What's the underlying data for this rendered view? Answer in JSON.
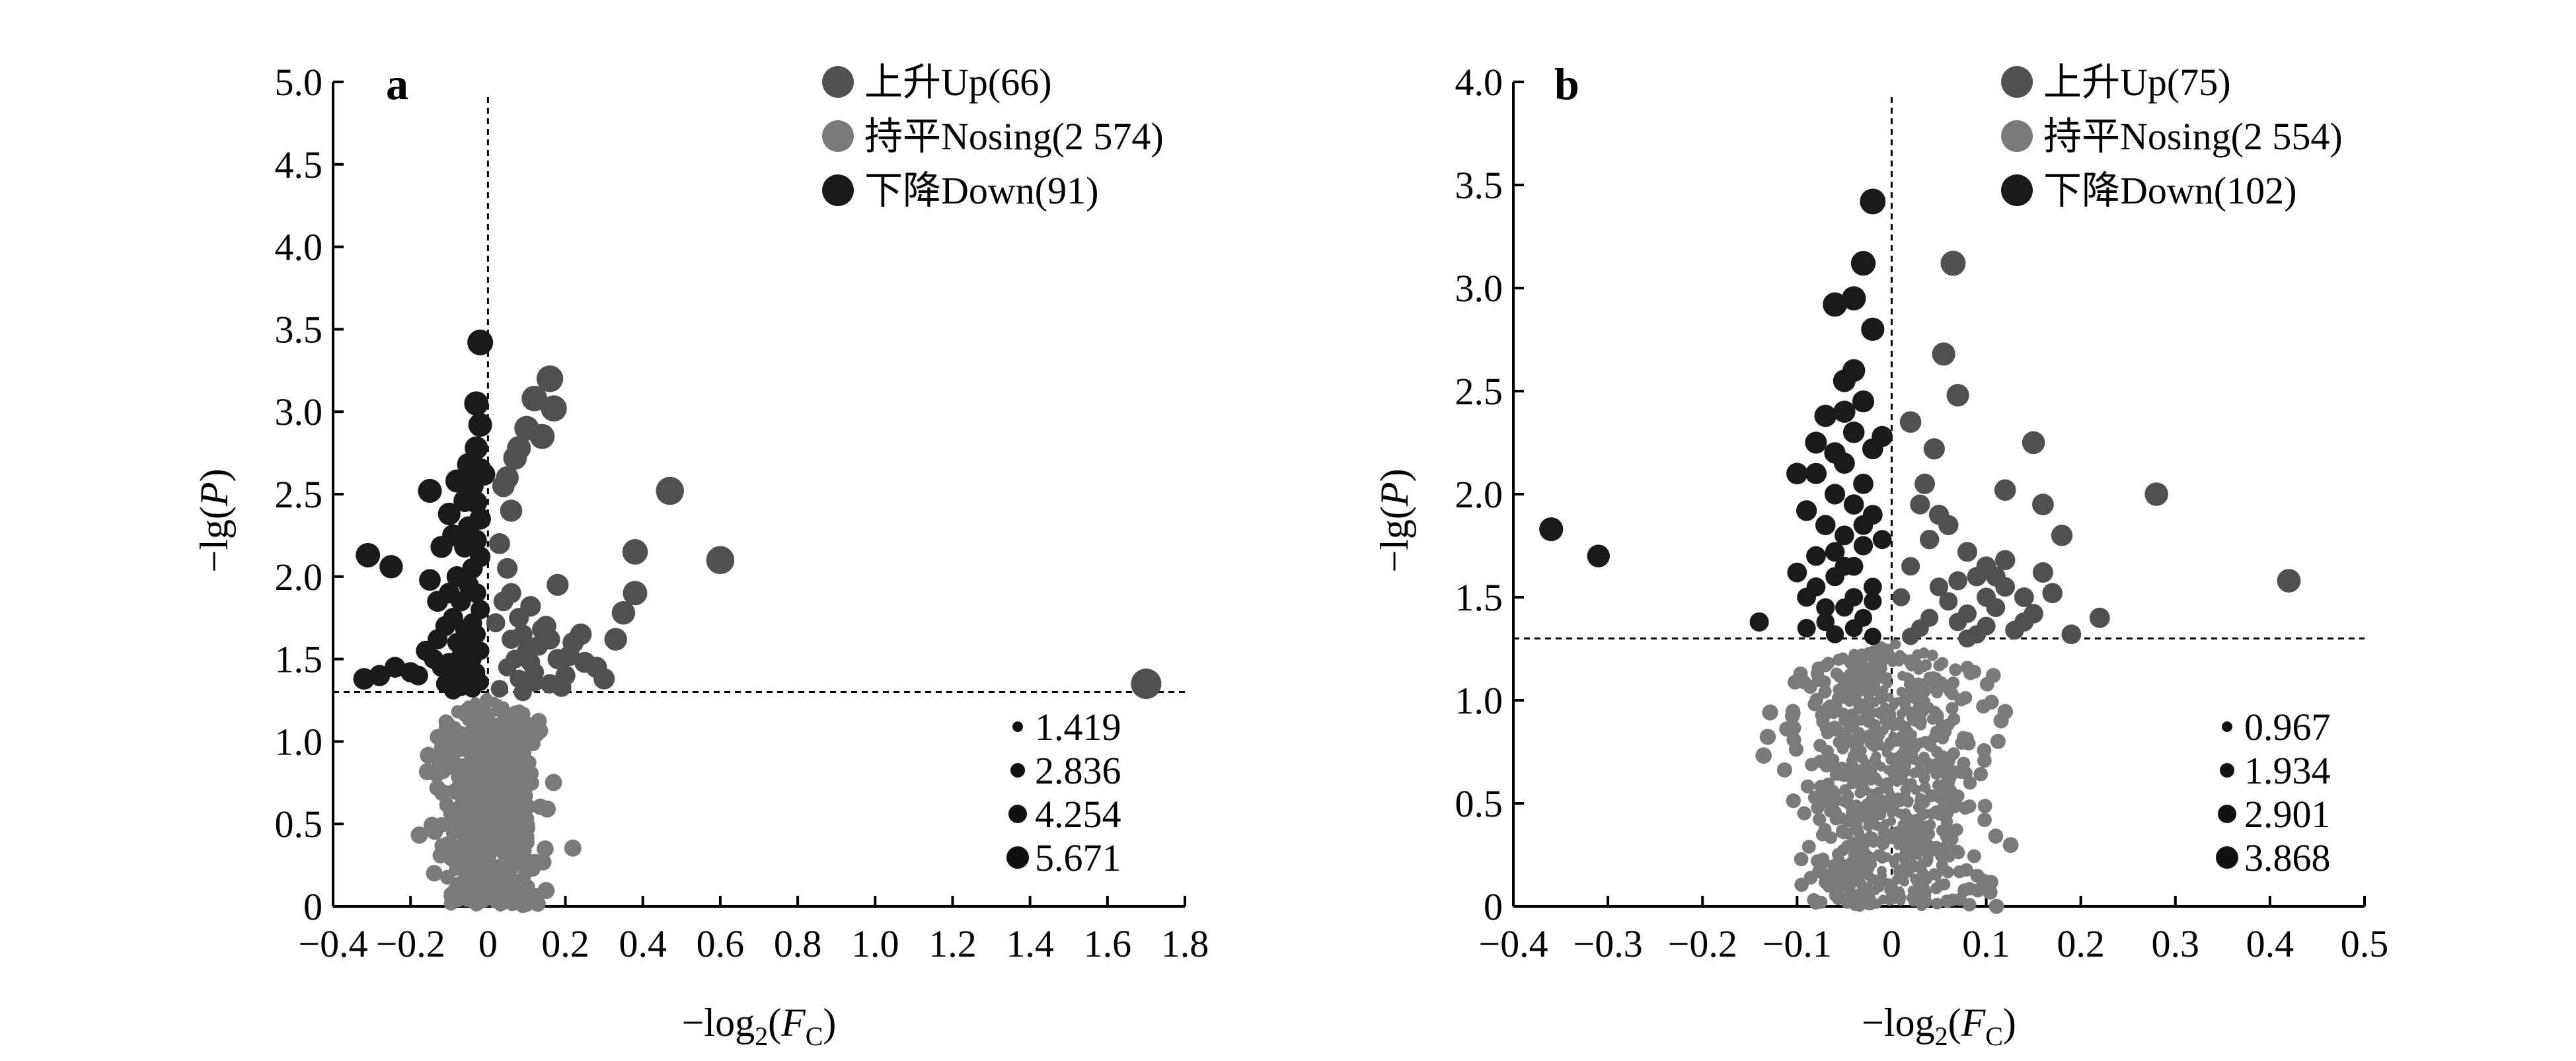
{
  "colors": {
    "up": "#505050",
    "nosing": "#7a7a7a",
    "down": "#1a1a1a"
  },
  "chart_data": [
    {
      "type": "scatter",
      "panel_label": "a",
      "xlabel": "−log2(FC)",
      "xlabel_parts": {
        "prefix": "−log",
        "sub": "2",
        "open": "(",
        "var": "F",
        "varsub": "C",
        "close": ")"
      },
      "ylabel": "−lg(P)",
      "ylabel_parts": {
        "prefix": "−lg(",
        "var": "P",
        "close": ")"
      },
      "xlim": [
        -0.4,
        1.8
      ],
      "ylim": [
        0,
        5.0
      ],
      "x_ticks": [
        -0.4,
        -0.2,
        0,
        0.2,
        0.4,
        0.6,
        0.8,
        1.0,
        1.2,
        1.4,
        1.6,
        1.8
      ],
      "x_tick_labels": [
        "−0.4",
        "−0.2",
        "0",
        "0.2",
        "0.4",
        "0.6",
        "0.8",
        "1.0",
        "1.2",
        "1.4",
        "1.6",
        "1.8"
      ],
      "y_ticks": [
        0,
        0.5,
        1.0,
        1.5,
        2.0,
        2.5,
        3.0,
        3.5,
        4.0,
        4.5,
        5.0
      ],
      "y_tick_labels": [
        "0",
        "0.5",
        "1.0",
        "1.5",
        "2.0",
        "2.5",
        "3.0",
        "3.5",
        "4.0",
        "4.5",
        "5.0"
      ],
      "threshold_y": 1.3,
      "threshold_x": 0,
      "legend": [
        {
          "key": "up",
          "label": "上升Up(66)"
        },
        {
          "key": "nosing",
          "label": "持平Nosing(2 574)"
        },
        {
          "key": "down",
          "label": "下降Down(91)"
        }
      ],
      "size_legend": [
        "1.419",
        "2.836",
        "4.254",
        "5.671"
      ],
      "series": [
        {
          "name": "上升Up(66)",
          "key": "up",
          "points": [
            [
              0.03,
              1.32
            ],
            [
              0.05,
              1.45
            ],
            [
              0.06,
              1.62
            ],
            [
              0.08,
              1.38
            ],
            [
              0.1,
              1.55
            ],
            [
              0.12,
              1.42
            ],
            [
              0.14,
              1.68
            ],
            [
              0.16,
              1.35
            ],
            [
              0.18,
              1.5
            ],
            [
              0.2,
              1.4
            ],
            [
              0.04,
              2.55
            ],
            [
              0.05,
              2.6
            ],
            [
              0.07,
              2.72
            ],
            [
              0.1,
              2.9
            ],
            [
              0.12,
              3.08
            ],
            [
              0.16,
              3.2
            ],
            [
              0.17,
              3.02
            ],
            [
              0.14,
              2.85
            ],
            [
              0.08,
              2.78
            ],
            [
              0.06,
              2.4
            ],
            [
              0.06,
              1.9
            ],
            [
              0.08,
              1.75
            ],
            [
              0.11,
              1.82
            ],
            [
              0.15,
              1.7
            ],
            [
              0.18,
              1.95
            ],
            [
              0.22,
              1.6
            ],
            [
              0.25,
              1.48
            ],
            [
              0.28,
              1.45
            ],
            [
              0.33,
              1.62
            ],
            [
              0.35,
              1.78
            ],
            [
              0.38,
              1.9
            ],
            [
              0.38,
              2.15
            ],
            [
              0.47,
              2.52
            ],
            [
              0.6,
              2.1
            ],
            [
              1.7,
              1.35
            ],
            [
              0.02,
              1.72
            ],
            [
              0.09,
              1.3
            ],
            [
              0.13,
              1.58
            ],
            [
              0.19,
              1.33
            ],
            [
              0.07,
              1.5
            ],
            [
              0.04,
              1.85
            ],
            [
              0.11,
              1.48
            ],
            [
              0.16,
              1.62
            ],
            [
              0.21,
              1.52
            ],
            [
              0.3,
              1.38
            ],
            [
              0.03,
              2.2
            ],
            [
              0.05,
              2.05
            ],
            [
              0.09,
              1.65
            ],
            [
              0.12,
              1.36
            ],
            [
              0.24,
              1.65
            ]
          ]
        },
        {
          "name": "下降Down(91)",
          "key": "down",
          "points": [
            [
              -0.02,
              3.42
            ],
            [
              -0.03,
              3.05
            ],
            [
              -0.02,
              2.92
            ],
            [
              -0.03,
              2.78
            ],
            [
              -0.02,
              2.65
            ],
            [
              -0.04,
              2.55
            ],
            [
              -0.03,
              2.45
            ],
            [
              -0.02,
              2.35
            ],
            [
              -0.05,
              2.3
            ],
            [
              -0.03,
              2.22
            ],
            [
              -0.06,
              2.18
            ],
            [
              -0.02,
              2.12
            ],
            [
              -0.04,
              2.05
            ],
            [
              -0.08,
              2.0
            ],
            [
              -0.05,
              1.95
            ],
            [
              -0.03,
              1.9
            ],
            [
              -0.07,
              1.85
            ],
            [
              -0.02,
              1.8
            ],
            [
              -0.09,
              1.75
            ],
            [
              -0.04,
              1.72
            ],
            [
              -0.06,
              1.68
            ],
            [
              -0.03,
              1.65
            ],
            [
              -0.08,
              1.6
            ],
            [
              -0.05,
              1.58
            ],
            [
              -0.02,
              1.55
            ],
            [
              -0.07,
              1.52
            ],
            [
              -0.04,
              1.5
            ],
            [
              -0.1,
              1.48
            ],
            [
              -0.06,
              1.45
            ],
            [
              -0.03,
              1.42
            ],
            [
              -0.08,
              1.4
            ],
            [
              -0.05,
              1.38
            ],
            [
              -0.02,
              1.36
            ],
            [
              -0.11,
              1.35
            ],
            [
              -0.07,
              1.33
            ],
            [
              -0.04,
              1.32
            ],
            [
              -0.09,
              1.31
            ],
            [
              -0.12,
              1.45
            ],
            [
              -0.14,
              1.5
            ],
            [
              -0.16,
              1.55
            ],
            [
              -0.13,
              1.62
            ],
            [
              -0.18,
              1.4
            ],
            [
              -0.2,
              1.42
            ],
            [
              -0.24,
              1.45
            ],
            [
              -0.28,
              1.4
            ],
            [
              -0.32,
              1.38
            ],
            [
              -0.31,
              2.13
            ],
            [
              -0.25,
              2.06
            ],
            [
              -0.15,
              2.52
            ],
            [
              -0.12,
              2.18
            ],
            [
              -0.1,
              2.38
            ],
            [
              -0.08,
              2.58
            ],
            [
              -0.11,
              1.7
            ],
            [
              -0.06,
              2.46
            ],
            [
              -0.01,
              2.62
            ],
            [
              -0.1,
              1.9
            ],
            [
              -0.13,
              1.85
            ],
            [
              -0.15,
              1.98
            ],
            [
              -0.09,
              2.25
            ],
            [
              -0.05,
              2.68
            ]
          ]
        },
        {
          "name": "持平Nosing(2 574)",
          "key": "nosing",
          "points": []
        }
      ]
    },
    {
      "type": "scatter",
      "panel_label": "b",
      "xlabel": "−log2(FC)",
      "xlabel_parts": {
        "prefix": "−log",
        "sub": "2",
        "open": "(",
        "var": "F",
        "varsub": "C",
        "close": ")"
      },
      "ylabel": "−lg(P)",
      "ylabel_parts": {
        "prefix": "−lg(",
        "var": "P",
        "close": ")"
      },
      "xlim": [
        -0.4,
        0.5
      ],
      "ylim": [
        0,
        4.0
      ],
      "x_ticks": [
        -0.4,
        -0.3,
        -0.2,
        -0.1,
        0,
        0.1,
        0.2,
        0.3,
        0.4,
        0.5
      ],
      "x_tick_labels": [
        "−0.4",
        "−0.3",
        "−0.2",
        "−0.1",
        "0",
        "0.1",
        "0.2",
        "0.3",
        "0.4",
        "0.5"
      ],
      "y_ticks": [
        0,
        0.5,
        1.0,
        1.5,
        2.0,
        2.5,
        3.0,
        3.5,
        4.0
      ],
      "y_tick_labels": [
        "0",
        "0.5",
        "1.0",
        "1.5",
        "2.0",
        "2.5",
        "3.0",
        "3.5",
        "4.0"
      ],
      "threshold_y": 1.3,
      "threshold_x": 0,
      "legend": [
        {
          "key": "up",
          "label": "上升Up(75)"
        },
        {
          "key": "nosing",
          "label": "持平Nosing(2 554)"
        },
        {
          "key": "down",
          "label": "下降Down(102)"
        }
      ],
      "size_legend": [
        "0.967",
        "1.934",
        "2.901",
        "3.868"
      ],
      "series": [
        {
          "name": "上升Up(75)",
          "key": "up",
          "points": [
            [
              0.065,
              3.12
            ],
            [
              0.055,
              2.68
            ],
            [
              0.07,
              2.48
            ],
            [
              0.02,
              2.35
            ],
            [
              0.15,
              2.25
            ],
            [
              0.28,
              2.0
            ],
            [
              0.42,
              1.58
            ],
            [
              0.12,
              2.02
            ],
            [
              0.16,
              1.95
            ],
            [
              0.18,
              1.8
            ],
            [
              0.1,
              1.65
            ],
            [
              0.12,
              1.55
            ],
            [
              0.14,
              1.5
            ],
            [
              0.17,
              1.52
            ],
            [
              0.22,
              1.4
            ],
            [
              0.11,
              1.45
            ],
            [
              0.09,
              1.6
            ],
            [
              0.08,
              1.72
            ],
            [
              0.06,
              1.85
            ],
            [
              0.05,
              1.55
            ],
            [
              0.04,
              1.4
            ],
            [
              0.03,
              1.35
            ],
            [
              0.07,
              1.38
            ],
            [
              0.09,
              1.32
            ],
            [
              0.13,
              1.34
            ],
            [
              0.02,
              1.65
            ],
            [
              0.04,
              1.78
            ],
            [
              0.06,
              1.48
            ],
            [
              0.08,
              1.42
            ],
            [
              0.1,
              1.36
            ],
            [
              0.05,
              1.9
            ],
            [
              0.03,
              1.95
            ],
            [
              0.12,
              1.68
            ],
            [
              0.15,
              1.42
            ],
            [
              0.19,
              1.32
            ],
            [
              0.01,
              1.5
            ],
            [
              0.02,
              1.31
            ],
            [
              0.07,
              1.58
            ],
            [
              0.11,
              1.6
            ],
            [
              0.14,
              1.38
            ],
            [
              0.16,
              1.62
            ],
            [
              0.035,
              2.05
            ],
            [
              0.045,
              2.22
            ],
            [
              0.08,
              1.3
            ],
            [
              0.1,
              1.5
            ]
          ]
        },
        {
          "name": "下降Down(102)",
          "key": "down",
          "points": [
            [
              -0.02,
              3.42
            ],
            [
              -0.03,
              3.12
            ],
            [
              -0.04,
              2.95
            ],
            [
              -0.02,
              2.8
            ],
            [
              -0.06,
              2.92
            ],
            [
              -0.05,
              2.55
            ],
            [
              -0.03,
              2.45
            ],
            [
              -0.07,
              2.38
            ],
            [
              -0.04,
              2.3
            ],
            [
              -0.02,
              2.22
            ],
            [
              -0.05,
              2.15
            ],
            [
              -0.08,
              2.1
            ],
            [
              -0.03,
              2.05
            ],
            [
              -0.06,
              2.0
            ],
            [
              -0.04,
              1.95
            ],
            [
              -0.02,
              1.9
            ],
            [
              -0.07,
              1.85
            ],
            [
              -0.05,
              1.8
            ],
            [
              -0.03,
              1.75
            ],
            [
              -0.08,
              1.7
            ],
            [
              -0.04,
              1.65
            ],
            [
              -0.06,
              1.6
            ],
            [
              -0.02,
              1.55
            ],
            [
              -0.09,
              1.5
            ],
            [
              -0.05,
              1.45
            ],
            [
              -0.03,
              1.4
            ],
            [
              -0.07,
              1.38
            ],
            [
              -0.04,
              1.35
            ],
            [
              -0.06,
              1.32
            ],
            [
              -0.02,
              1.31
            ],
            [
              -0.36,
              1.83
            ],
            [
              -0.31,
              1.7
            ],
            [
              -0.14,
              1.38
            ],
            [
              -0.1,
              2.1
            ],
            [
              -0.08,
              2.25
            ],
            [
              -0.09,
              1.92
            ],
            [
              -0.05,
              2.4
            ],
            [
              -0.01,
              2.28
            ],
            [
              -0.06,
              1.72
            ],
            [
              -0.1,
              1.62
            ],
            [
              -0.08,
              1.55
            ],
            [
              -0.04,
              1.5
            ],
            [
              -0.07,
              1.45
            ],
            [
              -0.09,
              1.35
            ],
            [
              -0.05,
              1.65
            ],
            [
              -0.03,
              1.85
            ],
            [
              -0.06,
              2.2
            ],
            [
              -0.04,
              2.6
            ],
            [
              -0.01,
              1.78
            ],
            [
              -0.02,
              1.48
            ]
          ]
        },
        {
          "name": "持平Nosing(2 554)",
          "key": "nosing",
          "points": []
        }
      ]
    }
  ]
}
